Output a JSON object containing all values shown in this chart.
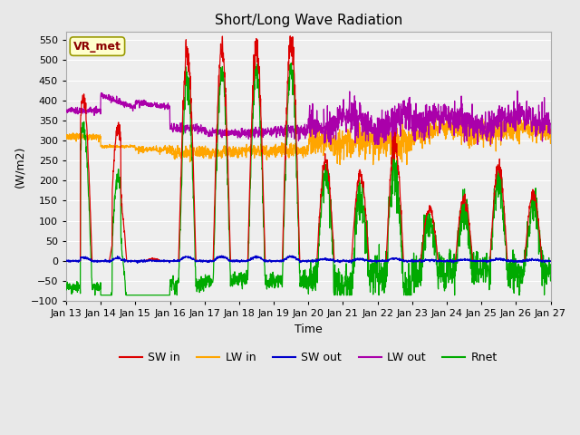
{
  "title": "Short/Long Wave Radiation",
  "xlabel": "Time",
  "ylabel": "(W/m2)",
  "ylim": [
    -100,
    570
  ],
  "yticks": [
    -100,
    -50,
    0,
    50,
    100,
    150,
    200,
    250,
    300,
    350,
    400,
    450,
    500,
    550
  ],
  "xlim": [
    0,
    14
  ],
  "xtick_labels": [
    "Jan 13",
    "Jan 14",
    "Jan 15",
    "Jan 16",
    "Jan 17",
    "Jan 18",
    "Jan 19",
    "Jan 20",
    "Jan 21",
    "Jan 22",
    "Jan 23",
    "Jan 24",
    "Jan 25",
    "Jan 26",
    "Jan 27"
  ],
  "xtick_positions": [
    0,
    1,
    2,
    3,
    4,
    5,
    6,
    7,
    8,
    9,
    10,
    11,
    12,
    13,
    14
  ],
  "annotation_text": "VR_met",
  "annotation_color": "#8B0000",
  "bg_color": "#e8e8e8",
  "plot_bg": "#eeeeee",
  "grid_color": "white",
  "colors": {
    "SW_in": "#dd0000",
    "LW_in": "#ffa500",
    "SW_out": "#0000cc",
    "LW_out": "#aa00aa",
    "Rnet": "#00aa00"
  },
  "legend_labels": [
    "SW in",
    "LW in",
    "SW out",
    "LW out",
    "Rnet"
  ]
}
